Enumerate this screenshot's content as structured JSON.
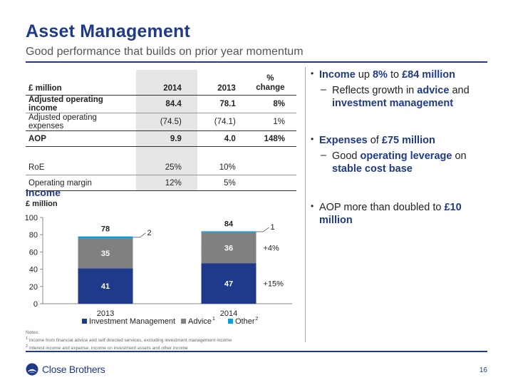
{
  "slide": {
    "title": "Asset Management",
    "subtitle": "Good performance that builds on prior year momentum",
    "page_number": "16"
  },
  "table": {
    "headers": [
      "£ million",
      "2014",
      "2013",
      "% change"
    ],
    "header_change_line1": "%",
    "header_change_line2": "change",
    "rows": [
      {
        "label": "Adjusted operating income",
        "v2014": "84.4",
        "v2013": "78.1",
        "change": "8%"
      },
      {
        "label": "Adjusted operating expenses",
        "v2014": "(74.5)",
        "v2013": "(74.1)",
        "change": "1%"
      },
      {
        "label": "AOP",
        "v2014": "9.9",
        "v2013": "4.0",
        "change": "148%"
      },
      {
        "label": "RoE",
        "v2014": "25%",
        "v2013": "10%",
        "change": ""
      },
      {
        "label": "Operating margin",
        "v2014": "12%",
        "v2013": "5%",
        "change": ""
      }
    ]
  },
  "income_chart": {
    "heading": "Income",
    "unit_label": "£ million"
  },
  "chart_data": {
    "type": "bar",
    "stacked": true,
    "categories": [
      "2013",
      "2014"
    ],
    "series": [
      {
        "name": "Investment Management",
        "values": [
          41,
          47
        ],
        "color": "#1f3a8a"
      },
      {
        "name": "Advice",
        "values": [
          35,
          36
        ],
        "color": "#808080"
      },
      {
        "name": "Other",
        "values": [
          2,
          1
        ],
        "color": "#00a3e0"
      }
    ],
    "totals": [
      "78",
      "84"
    ],
    "other_labels": [
      "2",
      "1"
    ],
    "growth_labels": {
      "advice": "+4%",
      "investment_management": "+15%"
    },
    "legend_superscripts": {
      "advice": "1",
      "other": "2"
    },
    "yticks": [
      0,
      20,
      40,
      60,
      80,
      100
    ],
    "ylim": [
      0,
      100
    ],
    "legend_position": "bottom",
    "grid": false
  },
  "bullets": {
    "b1_pre": "Income",
    "b1_mid": " up ",
    "b1_pct": "8%",
    "b1_to": " to ",
    "b1_amt": "£84 million",
    "b1_sub_pre": "Reflects growth in ",
    "b1_sub_advice": "advice",
    "b1_sub_and": " and ",
    "b1_sub_im": "investment management",
    "b2_pre": "Expenses",
    "b2_of": " of ",
    "b2_amt": "£75 million",
    "b2_sub_pre": "Good ",
    "b2_sub_lev": "operating leverage",
    "b2_sub_on": " on ",
    "b2_sub_base": "stable cost base",
    "b3_pre": "AOP more than doubled to ",
    "b3_amt": "£10 million"
  },
  "notes": {
    "title": "Notes:",
    "n1_num": "1",
    "n1_text": " Income from financial advice and self directed services, excluding investment management income",
    "n2_num": "2",
    "n2_text": " Interest income and expense, income on investment assets and other income"
  },
  "logo": {
    "text": "Close Brothers",
    "icon": "close-brothers-logo-icon"
  },
  "colors": {
    "brand": "#1f3a8a",
    "investment_management": "#1f3a8a",
    "advice": "#808080",
    "other": "#00a3e0"
  }
}
